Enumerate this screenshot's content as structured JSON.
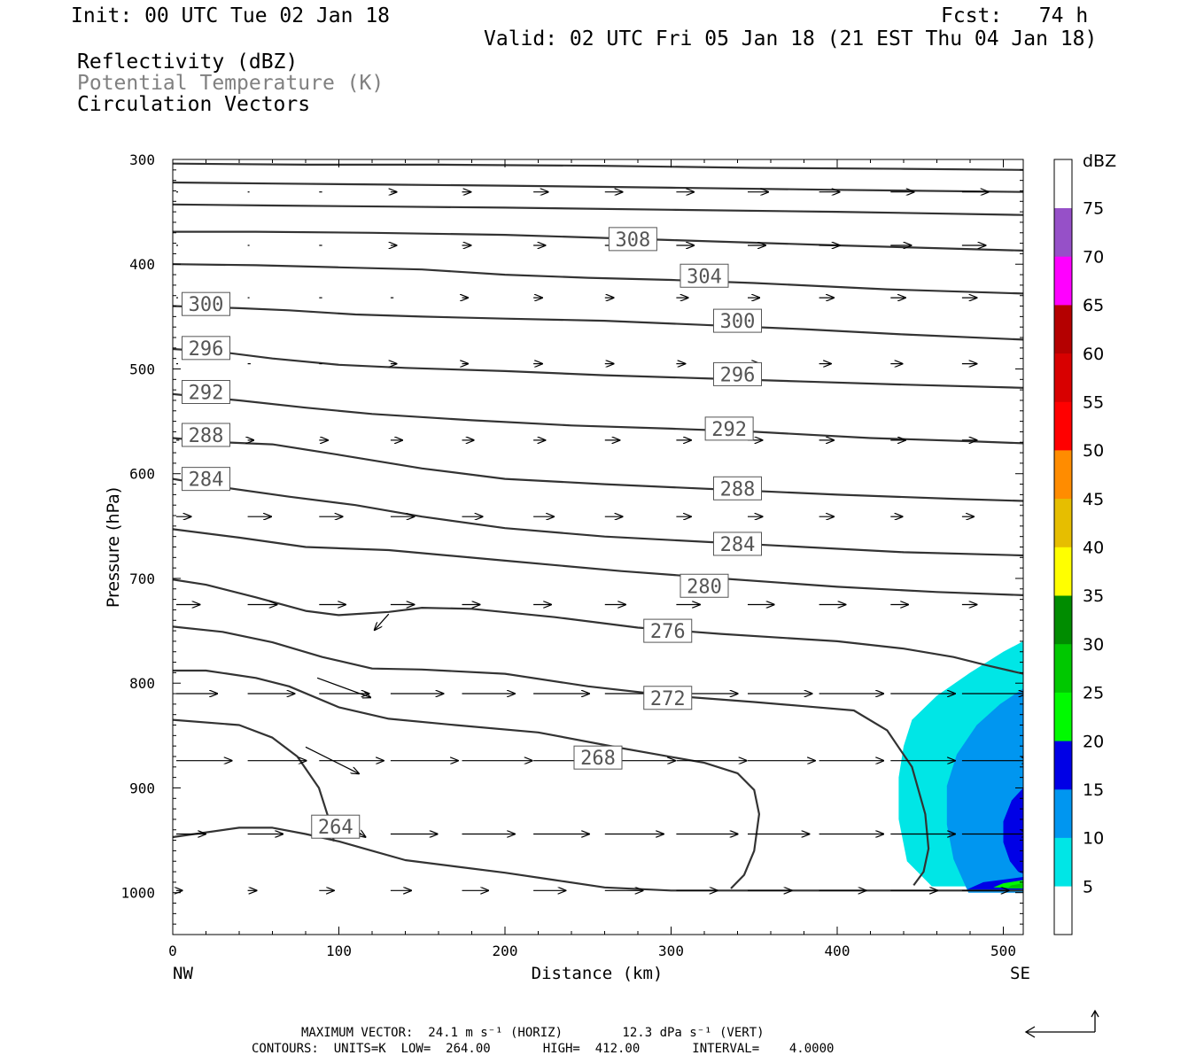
{
  "header": {
    "init": "Init: 00 UTC Tue 02 Jan 18",
    "fcst": "Fcst:   74 h",
    "valid": "Valid: 02 UTC Fri 05 Jan 18 (21 EST Thu 04 Jan 18)",
    "fields": [
      {
        "text": "Reflectivity (dBZ)",
        "color": "#000000"
      },
      {
        "text": "Potential Temperature (K)",
        "color": "#808080"
      },
      {
        "text": "Circulation Vectors",
        "color": "#000000"
      }
    ]
  },
  "chart_data": {
    "type": "cross-section",
    "xlabel": "Distance (km)",
    "ylabel": "Pressure (hPa)",
    "xlim": [
      0,
      512
    ],
    "ylim": [
      1040,
      300
    ],
    "x_ticks": [
      0,
      100,
      200,
      300,
      400,
      500
    ],
    "y_ticks": [
      300,
      400,
      500,
      600,
      700,
      800,
      900,
      1000
    ],
    "x_end_labels": {
      "left": "NW",
      "right": "SE"
    },
    "colorbar": {
      "title": "dBZ",
      "levels": [
        5,
        10,
        15,
        20,
        25,
        30,
        35,
        40,
        45,
        50,
        55,
        60,
        65,
        70,
        75
      ],
      "colors": [
        "#ffffff",
        "#00e6e6",
        "#0096f0",
        "#0000e6",
        "#00fa00",
        "#00c800",
        "#008c00",
        "#ffff00",
        "#e6be00",
        "#ff8c00",
        "#ff0000",
        "#d80000",
        "#b40000",
        "#ff00ff",
        "#9650c8",
        "#ffffff"
      ]
    },
    "reflectivity_regions": [
      {
        "dbz": 5,
        "color": "#00e6e6",
        "points": [
          [
            512,
            760
          ],
          [
            500,
            770
          ],
          [
            480,
            790
          ],
          [
            460,
            812
          ],
          [
            445,
            835
          ],
          [
            440,
            860
          ],
          [
            437,
            890
          ],
          [
            437,
            930
          ],
          [
            442,
            970
          ],
          [
            457,
            994
          ],
          [
            512,
            994
          ]
        ]
      },
      {
        "dbz": 10,
        "color": "#0096f0",
        "points": [
          [
            512,
            805
          ],
          [
            498,
            820
          ],
          [
            484,
            840
          ],
          [
            472,
            868
          ],
          [
            466,
            898
          ],
          [
            466,
            935
          ],
          [
            470,
            968
          ],
          [
            479,
            1000
          ],
          [
            512,
            1000
          ]
        ]
      },
      {
        "dbz": 15,
        "color": "#0000e6",
        "points": [
          [
            512,
            900
          ],
          [
            505,
            912
          ],
          [
            500,
            932
          ],
          [
            500,
            952
          ],
          [
            504,
            970
          ],
          [
            509,
            980
          ],
          [
            512,
            982
          ]
        ]
      },
      {
        "dbz": 15,
        "color": "#0000e6",
        "points": [
          [
            512,
            985
          ],
          [
            488,
            990
          ],
          [
            478,
            997
          ],
          [
            512,
            997
          ]
        ]
      },
      {
        "dbz": 20,
        "color": "#00fa00",
        "points": [
          [
            512,
            988
          ],
          [
            500,
            991
          ],
          [
            494,
            995
          ],
          [
            512,
            996
          ]
        ]
      },
      {
        "dbz": 25,
        "color": "#00c800",
        "points": [
          [
            512,
            991
          ],
          [
            505,
            993
          ],
          [
            502,
            996
          ],
          [
            512,
            996
          ]
        ]
      }
    ],
    "theta_contours": [
      {
        "k": null,
        "points": [
          [
            0,
            304
          ],
          [
            80,
            305
          ],
          [
            160,
            305
          ],
          [
            256,
            306
          ],
          [
            350,
            308
          ],
          [
            440,
            309
          ],
          [
            512,
            310
          ]
        ]
      },
      {
        "k": null,
        "points": [
          [
            0,
            322
          ],
          [
            60,
            323
          ],
          [
            130,
            324
          ],
          [
            200,
            325
          ],
          [
            300,
            327
          ],
          [
            400,
            329
          ],
          [
            512,
            331
          ]
        ]
      },
      {
        "k": null,
        "points": [
          [
            0,
            343
          ],
          [
            60,
            344
          ],
          [
            130,
            345
          ],
          [
            200,
            346
          ],
          [
            300,
            348
          ],
          [
            400,
            350
          ],
          [
            512,
            353
          ]
        ]
      },
      {
        "k": 308,
        "points": [
          [
            0,
            369
          ],
          [
            50,
            369
          ],
          [
            120,
            370
          ],
          [
            200,
            372
          ],
          [
            300,
            377
          ],
          [
            400,
            382
          ],
          [
            512,
            387
          ]
        ]
      },
      {
        "k": 304,
        "points": [
          [
            0,
            400
          ],
          [
            50,
            401
          ],
          [
            100,
            403
          ],
          [
            150,
            405
          ],
          [
            200,
            410
          ],
          [
            250,
            413
          ],
          [
            300,
            415
          ],
          [
            350,
            418
          ],
          [
            430,
            424
          ],
          [
            512,
            428
          ]
        ]
      },
      {
        "k": 300,
        "points": [
          [
            0,
            440
          ],
          [
            40,
            442
          ],
          [
            70,
            444
          ],
          [
            110,
            448
          ],
          [
            150,
            450
          ],
          [
            200,
            452
          ],
          [
            260,
            454
          ],
          [
            320,
            458
          ],
          [
            380,
            462
          ],
          [
            440,
            467
          ],
          [
            512,
            472
          ]
        ]
      },
      {
        "k": 296,
        "points": [
          [
            0,
            481
          ],
          [
            30,
            484
          ],
          [
            60,
            490
          ],
          [
            100,
            496
          ],
          [
            140,
            499
          ],
          [
            200,
            502
          ],
          [
            260,
            506
          ],
          [
            320,
            509
          ],
          [
            380,
            512
          ],
          [
            440,
            515
          ],
          [
            512,
            518
          ]
        ]
      },
      {
        "k": 292,
        "points": [
          [
            0,
            524
          ],
          [
            40,
            530
          ],
          [
            80,
            537
          ],
          [
            120,
            543
          ],
          [
            180,
            549
          ],
          [
            240,
            554
          ],
          [
            300,
            557
          ],
          [
            350,
            560
          ],
          [
            420,
            566
          ],
          [
            480,
            569
          ],
          [
            512,
            571
          ]
        ]
      },
      {
        "k": 288,
        "points": [
          [
            0,
            566
          ],
          [
            30,
            570
          ],
          [
            60,
            572
          ],
          [
            100,
            582
          ],
          [
            150,
            595
          ],
          [
            200,
            605
          ],
          [
            260,
            610
          ],
          [
            330,
            615
          ],
          [
            400,
            620
          ],
          [
            470,
            624
          ],
          [
            512,
            626
          ]
        ]
      },
      {
        "k": 284,
        "points": [
          [
            0,
            605
          ],
          [
            30,
            613
          ],
          [
            70,
            622
          ],
          [
            110,
            630
          ],
          [
            150,
            641
          ],
          [
            200,
            652
          ],
          [
            260,
            660
          ],
          [
            320,
            665
          ],
          [
            380,
            670
          ],
          [
            440,
            675
          ],
          [
            512,
            678
          ]
        ]
      },
      {
        "k": 280,
        "points": [
          [
            0,
            653
          ],
          [
            40,
            661
          ],
          [
            80,
            670
          ],
          [
            130,
            673
          ],
          [
            200,
            683
          ],
          [
            270,
            693
          ],
          [
            330,
            700
          ],
          [
            400,
            708
          ],
          [
            460,
            713
          ],
          [
            512,
            716
          ]
        ]
      },
      {
        "k": 276,
        "points": [
          [
            0,
            701
          ],
          [
            20,
            706
          ],
          [
            50,
            718
          ],
          [
            80,
            731
          ],
          [
            100,
            735
          ],
          [
            130,
            732
          ],
          [
            150,
            728
          ],
          [
            180,
            729
          ],
          [
            230,
            737
          ],
          [
            280,
            747
          ],
          [
            330,
            753
          ],
          [
            400,
            760
          ],
          [
            440,
            767
          ],
          [
            470,
            775
          ],
          [
            490,
            783
          ],
          [
            512,
            791
          ]
        ]
      },
      {
        "k": 272,
        "points": [
          [
            0,
            746
          ],
          [
            30,
            751
          ],
          [
            60,
            761
          ],
          [
            90,
            775
          ],
          [
            120,
            786
          ],
          [
            150,
            787
          ],
          [
            200,
            791
          ],
          [
            250,
            803
          ],
          [
            300,
            812
          ],
          [
            350,
            818
          ],
          [
            380,
            822
          ],
          [
            410,
            826
          ],
          [
            430,
            845
          ],
          [
            445,
            880
          ],
          [
            453,
            925
          ],
          [
            455,
            958
          ],
          [
            452,
            980
          ],
          [
            446,
            993
          ]
        ]
      },
      {
        "k": 268,
        "points": [
          [
            0,
            788
          ],
          [
            20,
            788
          ],
          [
            50,
            795
          ],
          [
            70,
            803
          ],
          [
            100,
            823
          ],
          [
            130,
            834
          ],
          [
            170,
            840
          ],
          [
            220,
            847
          ],
          [
            270,
            862
          ],
          [
            320,
            876
          ],
          [
            340,
            886
          ],
          [
            350,
            902
          ],
          [
            353,
            925
          ],
          [
            350,
            960
          ],
          [
            344,
            983
          ],
          [
            336,
            996
          ]
        ]
      },
      {
        "k": null,
        "points": [
          [
            0,
            835
          ],
          [
            40,
            840
          ],
          [
            60,
            852
          ],
          [
            75,
            870
          ],
          [
            88,
            900
          ],
          [
            94,
            930
          ],
          [
            97,
            951
          ]
        ]
      },
      {
        "k": 264,
        "points": [
          [
            0,
            947
          ],
          [
            40,
            938
          ],
          [
            60,
            938
          ],
          [
            80,
            944
          ],
          [
            100,
            951
          ],
          [
            120,
            960
          ],
          [
            140,
            969
          ],
          [
            170,
            975
          ],
          [
            200,
            981
          ],
          [
            230,
            988
          ],
          [
            260,
            995
          ],
          [
            300,
            998
          ],
          [
            360,
            998
          ],
          [
            420,
            998
          ],
          [
            512,
            998
          ]
        ]
      }
    ],
    "contour_labels": [
      {
        "k": 308,
        "x": 277,
        "p": 376
      },
      {
        "k": 304,
        "x": 320,
        "p": 411
      },
      {
        "k": 300,
        "x": 340,
        "p": 454
      },
      {
        "k": 296,
        "x": 340,
        "p": 505
      },
      {
        "k": 292,
        "x": 335,
        "p": 557
      },
      {
        "k": 288,
        "x": 340,
        "p": 614
      },
      {
        "k": 284,
        "x": 340,
        "p": 667
      },
      {
        "k": 280,
        "x": 320,
        "p": 707
      },
      {
        "k": 276,
        "x": 298,
        "p": 750
      },
      {
        "k": 272,
        "x": 298,
        "p": 814
      },
      {
        "k": 268,
        "x": 256,
        "p": 871
      },
      {
        "k": 300,
        "x": 20,
        "p": 438
      },
      {
        "k": 296,
        "x": 20,
        "p": 480
      },
      {
        "k": 292,
        "x": 20,
        "p": 522
      },
      {
        "k": 288,
        "x": 20,
        "p": 563
      },
      {
        "k": 284,
        "x": 20,
        "p": 605
      },
      {
        "k": 264,
        "x": 98,
        "p": 937
      }
    ],
    "vector_rows": [
      {
        "p": 331,
        "u": [
          0,
          0,
          1,
          2,
          3,
          5,
          6,
          6,
          7,
          7,
          8,
          9
        ]
      },
      {
        "p": 382,
        "u": [
          0,
          0,
          1,
          2,
          3,
          4,
          5,
          6,
          6,
          7,
          7,
          8
        ]
      },
      {
        "p": 432,
        "u": [
          0,
          0,
          1,
          1,
          2,
          3,
          3,
          4,
          4,
          5,
          5,
          5
        ]
      },
      {
        "p": 495,
        "u": [
          0,
          1,
          1,
          2,
          2,
          3,
          3,
          3,
          4,
          4,
          4,
          5
        ]
      },
      {
        "p": 568,
        "u": [
          1,
          2,
          3,
          4,
          4,
          4,
          5,
          5,
          5,
          5,
          5,
          5
        ]
      },
      {
        "p": 641,
        "u": [
          5,
          8,
          8,
          8,
          7,
          7,
          6,
          5,
          5,
          5,
          4,
          4
        ]
      },
      {
        "p": 725,
        "u": [
          8,
          10,
          9,
          8,
          6,
          6,
          7,
          8,
          9,
          9,
          6,
          5
        ]
      },
      {
        "p": 810,
        "u": [
          14,
          16,
          17,
          18,
          18,
          19,
          20,
          21,
          22,
          22,
          22,
          22
        ]
      },
      {
        "p": 874,
        "u": [
          19,
          20,
          22,
          23,
          24,
          24,
          24,
          24,
          23,
          22,
          22,
          23
        ]
      },
      {
        "p": 944,
        "u": [
          10,
          12,
          14,
          16,
          18,
          19,
          20,
          21,
          21,
          22,
          22,
          23
        ]
      },
      {
        "p": 998,
        "u": [
          2,
          3,
          5,
          7,
          9,
          11,
          13,
          14,
          15,
          16,
          16,
          16
        ]
      }
    ],
    "tilted_vectors": [
      {
        "x": 130,
        "p": 734,
        "dx": -16,
        "dy": 18
      },
      {
        "x": 87,
        "p": 795,
        "dx": 60,
        "dy": 22
      },
      {
        "x": 80,
        "p": 861,
        "dx": 60,
        "dy": 30
      },
      {
        "x": 100,
        "p": 930,
        "dx": 30,
        "dy": 20
      }
    ],
    "vector_xs": [
      0,
      43,
      86,
      129,
      172,
      215,
      258,
      301,
      344,
      387,
      430,
      473
    ]
  },
  "footer": {
    "max_vector": "MAXIMUM VECTOR:  24.1 m s⁻¹ (HORIZ)        12.3 dPa s⁻¹ (VERT)",
    "contours": "CONTOURS:  UNITS=K  LOW=  264.00       HIGH=  412.00       INTERVAL=    4.0000"
  }
}
